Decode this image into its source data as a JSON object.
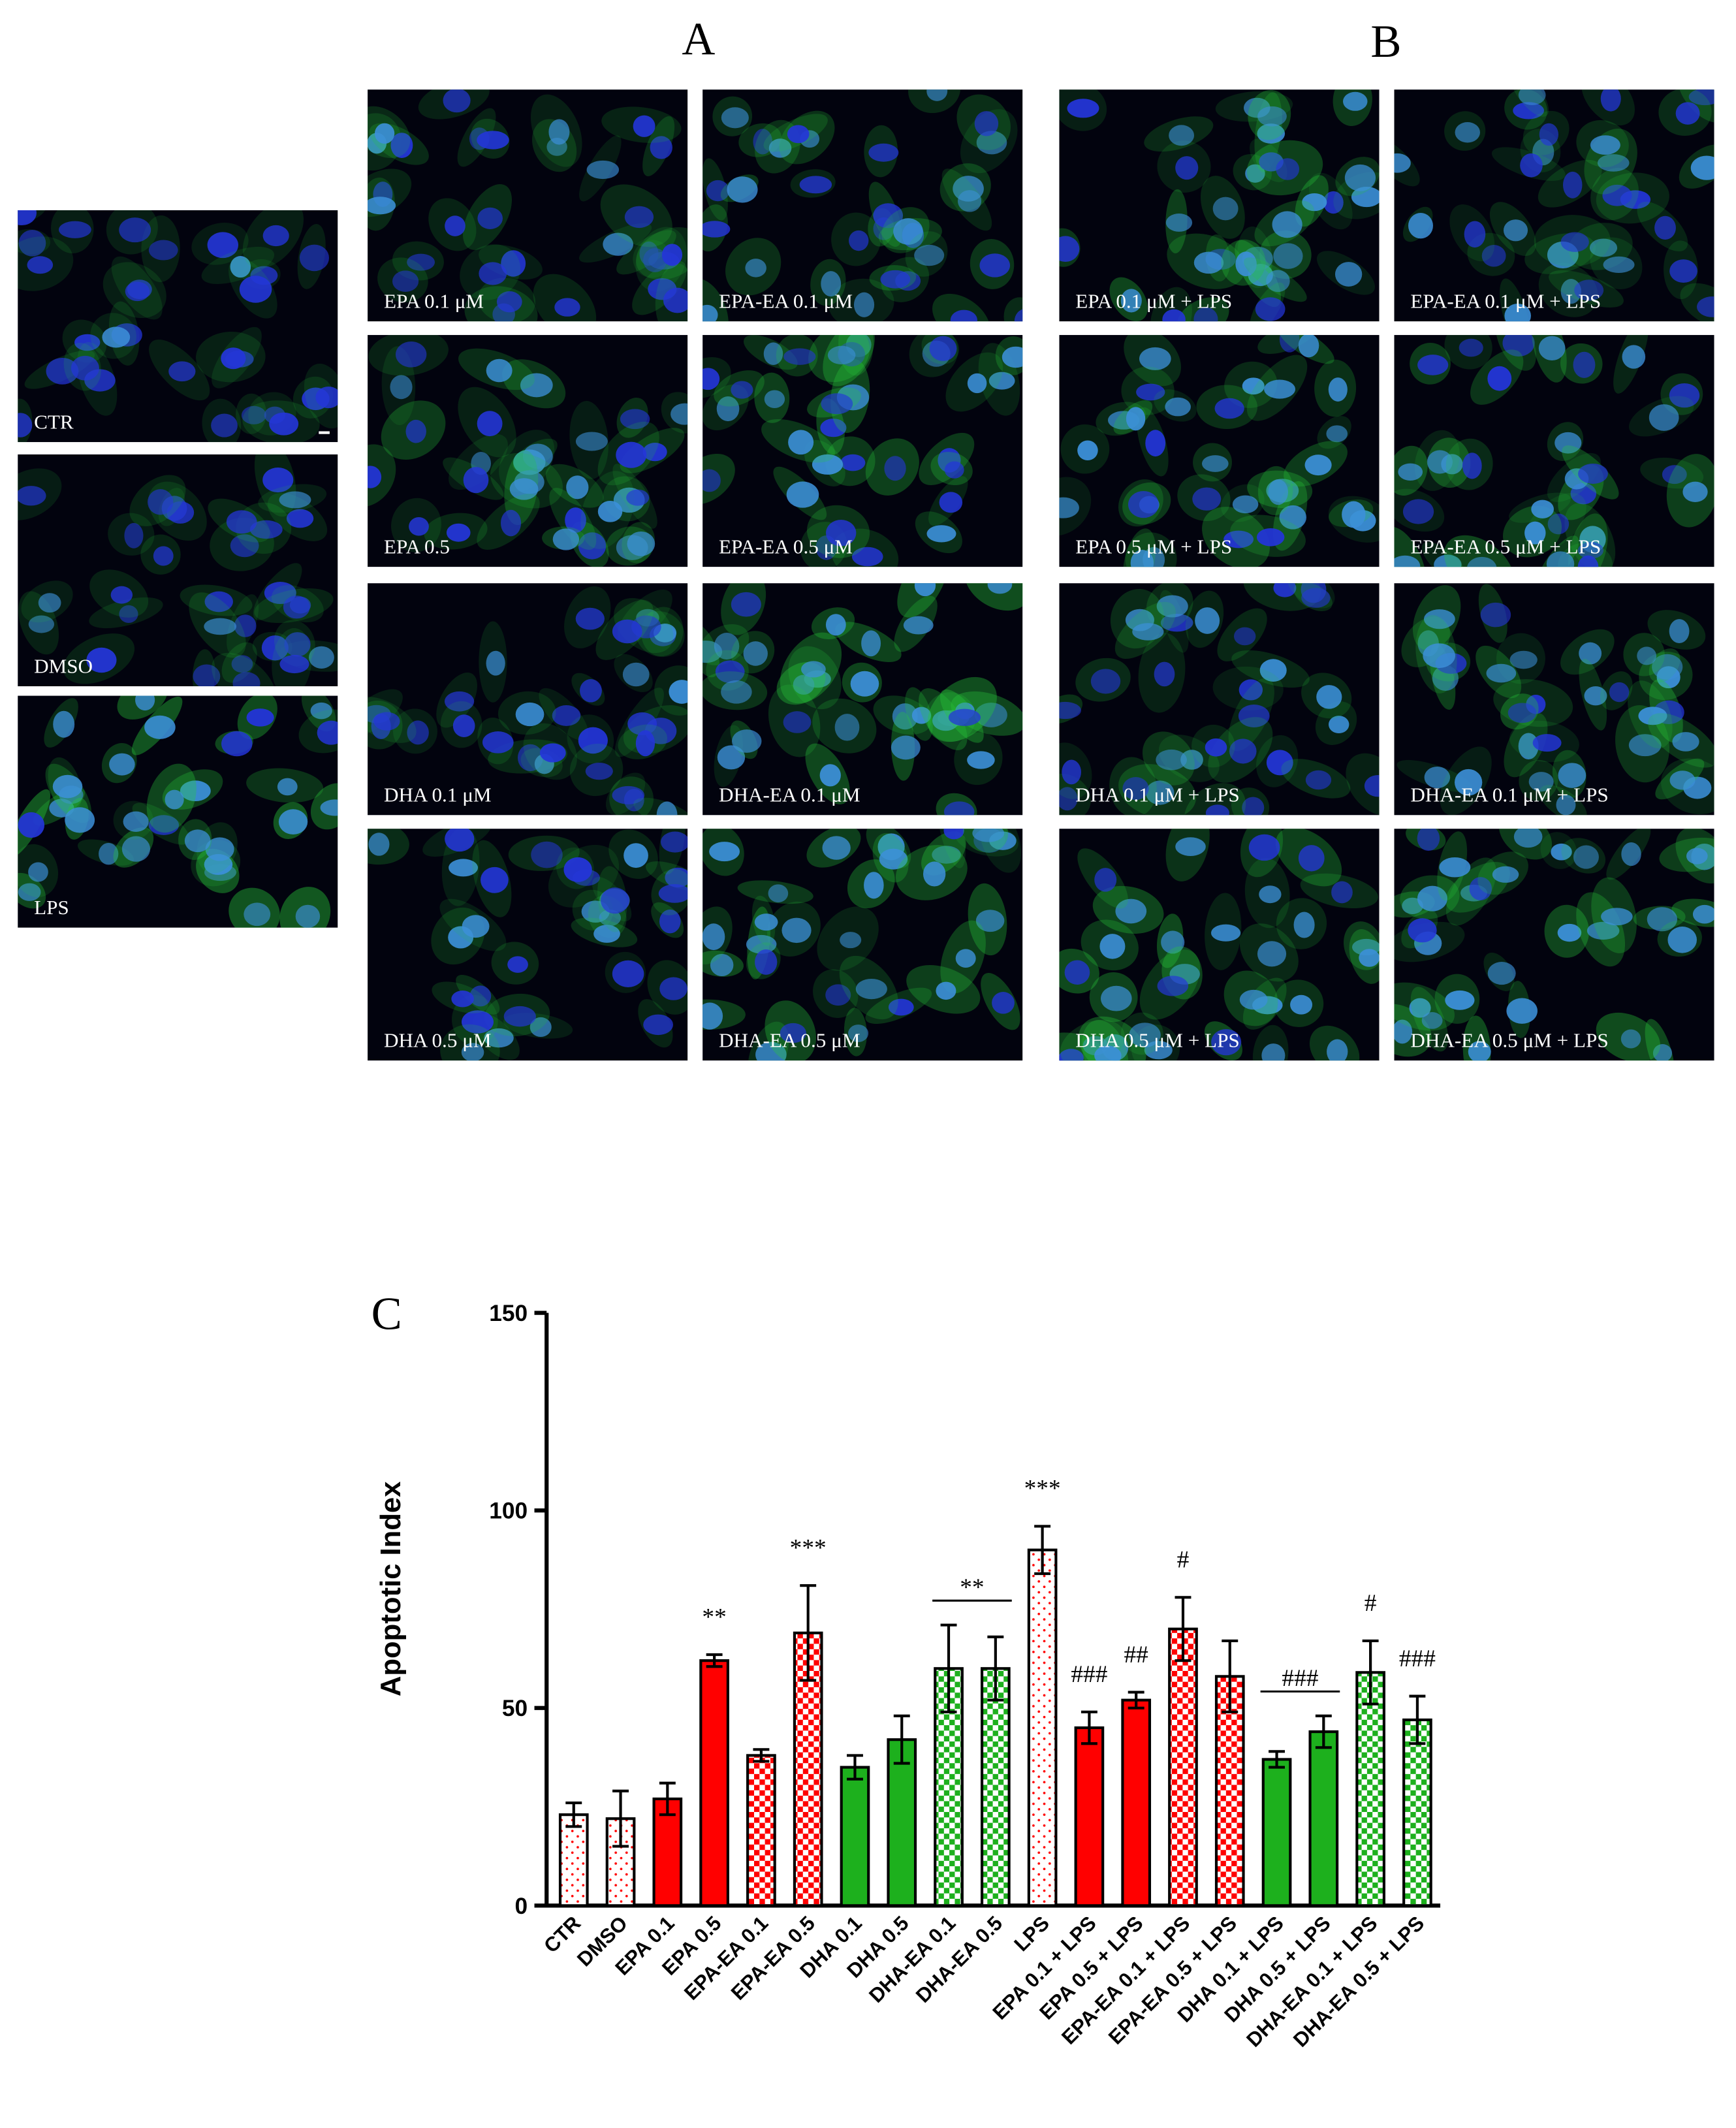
{
  "panel_labels": [
    "A",
    "B",
    "C"
  ],
  "images": [
    {
      "caption": "CTR"
    },
    {
      "caption": "DMSO"
    },
    {
      "caption": "LPS"
    },
    {
      "caption": "EPA 0.1 μM"
    },
    {
      "caption": "EPA-EA 0.1 μM"
    },
    {
      "caption": "EPA 0.5"
    },
    {
      "caption": "EPA-EA 0.5 μM"
    },
    {
      "caption": "DHA 0.1 μM"
    },
    {
      "caption": "DHA-EA 0.1 μM"
    },
    {
      "caption": "DHA 0.5 μM"
    },
    {
      "caption": "DHA-EA 0.5 μM"
    },
    {
      "caption": "EPA 0.1 μM + LPS"
    },
    {
      "caption": "EPA-EA 0.1 μM + LPS"
    },
    {
      "caption": "EPA 0.5 μM + LPS"
    },
    {
      "caption": "EPA-EA 0.5 μM + LPS"
    },
    {
      "caption": "DHA 0.1 μM + LPS"
    },
    {
      "caption": "DHA-EA 0.1 μM + LPS"
    },
    {
      "caption": "DHA 0.5 μM + LPS"
    },
    {
      "caption": "DHA-EA 0.5 μM + LPS"
    }
  ],
  "chart_data": {
    "type": "bar",
    "y_label": "Apoptotic Index",
    "categories": [
      "CTR",
      "DMSO",
      "EPA 0.1",
      "EPA 0.5",
      "EPA-EA 0.1",
      "EPA-EA 0.5",
      "DHA 0.1",
      "DHA 0.5",
      "DHA-EA 0.1",
      "DHA-EA 0.5",
      "LPS",
      "EPA 0.1 + LPS",
      "EPA 0.5 + LPS",
      "EPA-EA 0.1 + LPS",
      "EPA-EA 0.5 + LPS",
      "DHA 0.1 + LPS",
      "DHA 0.5 + LPS",
      "DHA-EA 0.1 + LPS",
      "DHA-EA 0.5 + LPS"
    ],
    "values": [
      23,
      22,
      27,
      62,
      38,
      69,
      35,
      42,
      60,
      60,
      90,
      45,
      52,
      70,
      58,
      37,
      44,
      59,
      47
    ],
    "errors": [
      3,
      7,
      4,
      1.5,
      1.5,
      12,
      3,
      6,
      11,
      8,
      6,
      4,
      2,
      8,
      9,
      2,
      4,
      8,
      6
    ],
    "colors": [
      "#ff0000",
      "#ff0000",
      "#ff0000",
      "#ff0000",
      "#ff0000",
      "#ff0000",
      "#1db01d",
      "#1db01d",
      "#1db01d",
      "#1db01d",
      "#ff0000",
      "#ff0000",
      "#ff0000",
      "#ff0000",
      "#ff0000",
      "#1db01d",
      "#1db01d",
      "#1db01d",
      "#1db01d"
    ],
    "patterns": [
      "dots",
      "dots",
      "solid",
      "solid",
      "checker",
      "checker",
      "solid",
      "solid",
      "checker",
      "checker",
      "dots",
      "solid",
      "solid",
      "checker",
      "checker",
      "solid",
      "solid",
      "checker",
      "checker"
    ],
    "annotations": [
      {
        "text": "**",
        "categories": [
          "EPA 0.5"
        ]
      },
      {
        "text": "***",
        "categories": [
          "EPA-EA 0.5"
        ]
      },
      {
        "text": "**",
        "categories": [
          "DHA-EA 0.1",
          "DHA-EA 0.5"
        ]
      },
      {
        "text": "***",
        "categories": [
          "LPS"
        ]
      },
      {
        "text": "###",
        "categories": [
          "EPA 0.1 + LPS"
        ]
      },
      {
        "text": "##",
        "categories": [
          "EPA 0.5 + LPS"
        ]
      },
      {
        "text": "#",
        "categories": [
          "EPA-EA 0.1 + LPS"
        ]
      },
      {
        "text": "###",
        "categories": [
          "DHA 0.1 + LPS",
          "DHA 0.5 + LPS"
        ]
      },
      {
        "text": "#",
        "categories": [
          "DHA-EA 0.1 + LPS"
        ]
      },
      {
        "text": "###",
        "categories": [
          "DHA-EA 0.5 + LPS"
        ]
      }
    ],
    "ylim": [
      0,
      150
    ],
    "yticks": [
      0,
      50,
      100,
      150
    ]
  }
}
